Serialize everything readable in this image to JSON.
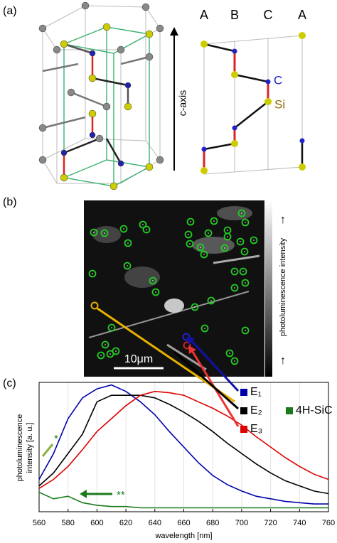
{
  "panel_a": {
    "label": "(a)",
    "columns": [
      "A",
      "B",
      "C",
      "A"
    ],
    "axis_label": "c-axis",
    "atom_c": "C",
    "atom_si": "Si"
  },
  "panel_b": {
    "label": "(b)",
    "scale_bar": "10μm",
    "colorbar_label": "photoluminescence intensity",
    "colorbar_high": "↑",
    "colorbar_low": "↑"
  },
  "panel_c": {
    "label": "(c)"
  },
  "chart_data": {
    "type": "line",
    "xlabel": "wavelength [nm]",
    "ylabel": [
      "photoluminescence",
      "intensity [a. u.]"
    ],
    "x": [
      560,
      570,
      580,
      590,
      600,
      610,
      620,
      630,
      640,
      650,
      660,
      670,
      680,
      690,
      700,
      710,
      720,
      730,
      740,
      750,
      760
    ],
    "xlim": [
      560,
      760
    ],
    "xticks": [
      560,
      580,
      600,
      620,
      640,
      660,
      680,
      700,
      720,
      740,
      760
    ],
    "ylim": [
      0,
      1
    ],
    "grid": true,
    "annotations": [
      "*",
      "**"
    ],
    "series": [
      {
        "name": "E₁",
        "color": "#0000aa",
        "values": [
          0.25,
          0.45,
          0.72,
          0.88,
          0.95,
          0.98,
          0.93,
          0.85,
          0.75,
          0.62,
          0.5,
          0.38,
          0.28,
          0.21,
          0.16,
          0.12,
          0.1,
          0.08,
          0.07,
          0.06,
          0.06
        ]
      },
      {
        "name": "E₂",
        "color": "#000000",
        "values": [
          0.2,
          0.3,
          0.45,
          0.6,
          0.85,
          0.9,
          0.9,
          0.9,
          0.88,
          0.83,
          0.77,
          0.7,
          0.62,
          0.53,
          0.45,
          0.37,
          0.3,
          0.24,
          0.2,
          0.16,
          0.14
        ]
      },
      {
        "name": "E₃",
        "color": "#dd0000",
        "values": [
          0.18,
          0.25,
          0.35,
          0.48,
          0.62,
          0.72,
          0.82,
          0.9,
          0.93,
          0.92,
          0.9,
          0.85,
          0.8,
          0.74,
          0.67,
          0.58,
          0.5,
          0.42,
          0.35,
          0.29,
          0.25
        ]
      },
      {
        "name": "4H-SiC",
        "color": "#1a7a1a",
        "values": [
          0.15,
          0.1,
          0.12,
          0.07,
          0.05,
          0.04,
          0.04,
          0.03,
          0.03,
          0.03,
          0.03,
          0.03,
          0.03,
          0.03,
          0.03,
          0.03,
          0.03,
          0.03,
          0.03,
          0.03,
          0.03
        ]
      }
    ]
  }
}
